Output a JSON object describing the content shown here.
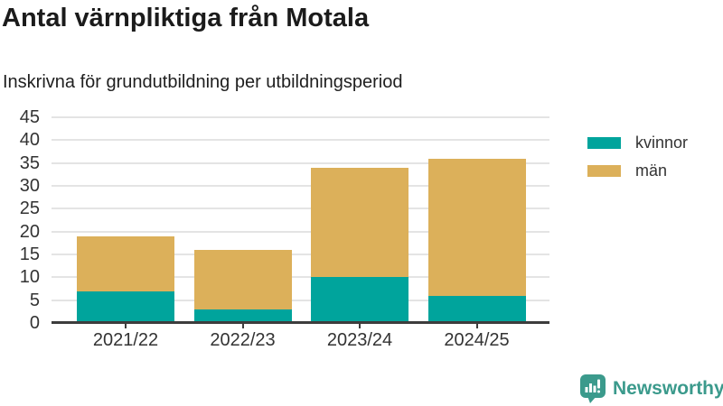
{
  "header": {
    "title": "Antal värnpliktiga från Motala",
    "subtitle": "Inskrivna för grundutbildning per utbildningsperiod"
  },
  "chart_data": {
    "type": "bar",
    "stacked": true,
    "title": "Antal värnpliktiga från Motala",
    "subtitle": "Inskrivna för grundutbildning per utbildningsperiod",
    "categories": [
      "2021/22",
      "2022/23",
      "2023/24",
      "2024/25"
    ],
    "series": [
      {
        "name": "kvinnor",
        "color": "#00A49C",
        "values": [
          7,
          3,
          10,
          6
        ]
      },
      {
        "name": "män",
        "color": "#DCB05A",
        "values": [
          12,
          13,
          24,
          30
        ]
      }
    ],
    "totals": [
      19,
      16,
      34,
      36
    ],
    "xlabel": "",
    "ylabel": "",
    "ylim": [
      0,
      45
    ],
    "yticks": [
      0,
      5,
      10,
      15,
      20,
      25,
      30,
      35,
      40,
      45
    ],
    "grid": true,
    "legend_position": "right"
  },
  "footer": {
    "brand": "Newsworthy",
    "logo_icon": "bar-chart-speech-bubble-icon"
  },
  "colors": {
    "kvinnor": "#00A49C",
    "man": "#DCB05A",
    "axis": "#3d3d3d",
    "grid": "#e4e4e4",
    "tick_text": "#333333",
    "title_text": "#1b1b1b",
    "brand": "#3B9A8C"
  }
}
